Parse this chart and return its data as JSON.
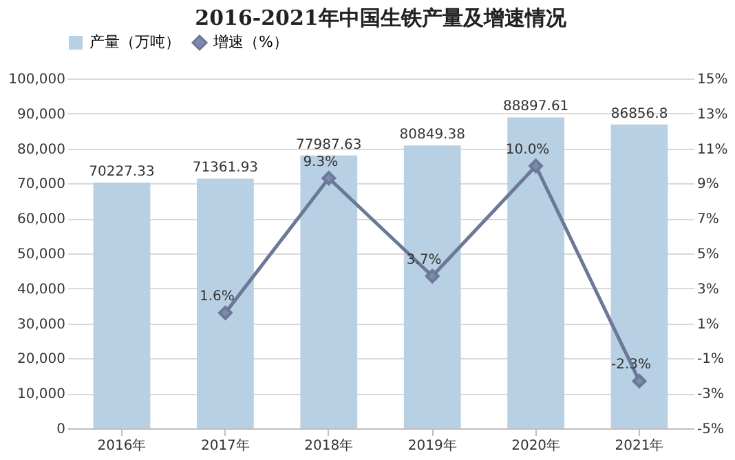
{
  "chart_data": {
    "type": "bar",
    "title": "2016-2021年中国生铁产量及增速情况",
    "categories": [
      "2016年",
      "2017年",
      "2018年",
      "2019年",
      "2020年",
      "2021年"
    ],
    "series": [
      {
        "name": "产量（万吨）",
        "color": "#b7d0e3",
        "values": [
          70227.33,
          71361.93,
          77987.63,
          80849.38,
          88897.61,
          86856.8
        ],
        "value_labels": [
          "70227.33",
          "71361.93",
          "77987.63",
          "80849.38",
          "88897.61",
          "86856.8"
        ]
      },
      {
        "name": "增速（%）",
        "type": "line",
        "axis": "y2",
        "color": "#6b7896",
        "marker": "diamond",
        "values": [
          null,
          1.6,
          9.3,
          3.7,
          10.0,
          -2.3
        ],
        "value_labels": [
          null,
          "1.6%",
          "9.3%",
          "3.7%",
          "10.0%",
          "-2.3%"
        ]
      }
    ],
    "ylim": [
      0,
      100000
    ],
    "yticks": [
      0,
      {
        "value": 10000,
        "label": "10,000"
      },
      {
        "value": 20000,
        "label": "20,000"
      },
      {
        "value": 30000,
        "label": "30,000"
      },
      {
        "value": 40000,
        "label": "40,000"
      },
      {
        "value": 50000,
        "label": "50,000"
      },
      {
        "value": 60000,
        "label": "60,000"
      },
      {
        "value": 70000,
        "label": "70,000"
      },
      {
        "value": 80000,
        "label": "80,000"
      },
      {
        "value": 90000,
        "label": "90,000"
      },
      {
        "value": 100000,
        "label": "100,000"
      }
    ],
    "y2lim": [
      -5,
      15
    ],
    "y2ticks": [
      {
        "value": -5,
        "label": "-5%"
      },
      {
        "value": -3,
        "label": "-3%"
      },
      {
        "value": -1,
        "label": "-1%"
      },
      {
        "value": 1,
        "label": "1%"
      },
      {
        "value": 3,
        "label": "3%"
      },
      {
        "value": 5,
        "label": "5%"
      },
      {
        "value": 7,
        "label": "7%"
      },
      {
        "value": 9,
        "label": "9%"
      },
      {
        "value": 11,
        "label": "11%"
      },
      {
        "value": 13,
        "label": "13%"
      },
      {
        "value": 15,
        "label": "15%"
      }
    ],
    "grid": "y",
    "legend": "top",
    "line_style": "solid"
  }
}
